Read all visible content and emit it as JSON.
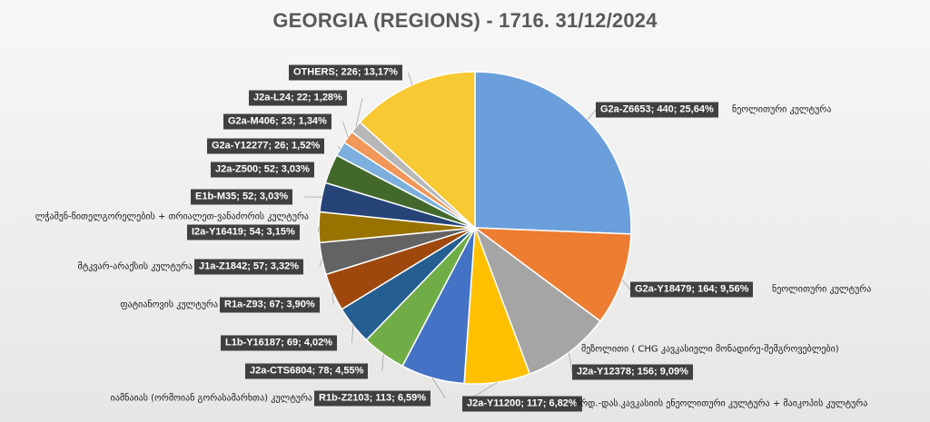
{
  "chart_data": {
    "type": "pie",
    "title": "GEORGIA (REGIONS) - 1716. 31/12/2024",
    "total": 1716,
    "slices": [
      {
        "label": "G2a-Z6653",
        "count": 440,
        "percent": "25,64%",
        "color": "#6a9fdb",
        "note": "ნეოლითური კულტურა"
      },
      {
        "label": "G2a-Y18479",
        "count": 164,
        "percent": "9,56%",
        "color": "#ed7d31",
        "note": "ნეოლითური კულტურა"
      },
      {
        "label": "J2a-Y12378",
        "count": 156,
        "percent": "9,09%",
        "color": "#a5a5a5",
        "note": "მეზოლითი ( CHG კავკასიელი მონადირე-შემგროვებლები)"
      },
      {
        "label": "J2a-Y11200",
        "count": 117,
        "percent": "6,82%",
        "color": "#ffc000",
        "note": "ჩრდ.-დას.კავკასიის ენეოლითური კულტურა + მაიკოპის კულტურა"
      },
      {
        "label": "R1b-Z2103",
        "count": 113,
        "percent": "6,59%",
        "color": "#4472c4",
        "note": "იამნაიას (ორმოიან გორასამარხთა) კულტურა"
      },
      {
        "label": "J2a-CTS6804",
        "count": 78,
        "percent": "4,55%",
        "color": "#70ad47",
        "note": ""
      },
      {
        "label": "L1b-Y16187",
        "count": 69,
        "percent": "4,02%",
        "color": "#255e91",
        "note": ""
      },
      {
        "label": "R1a-Z93",
        "count": 67,
        "percent": "3,90%",
        "color": "#9e480e",
        "note": "ფატიანოვის კულტურა"
      },
      {
        "label": "J1a-Z1842",
        "count": 57,
        "percent": "3,32%",
        "color": "#636363",
        "note": "მტკვარ-არაქსის კულტურა"
      },
      {
        "label": "I2a-Y16419",
        "count": 54,
        "percent": "3,15%",
        "color": "#997300",
        "note": ""
      },
      {
        "label": "E1b-M35",
        "count": 52,
        "percent": "3,03%",
        "color": "#264478",
        "note": "ლჭაშენ-წითელგორელების + თრიალეთ-ვანაძორის კულტურა"
      },
      {
        "label": "J2a-Z500",
        "count": 52,
        "percent": "3,03%",
        "color": "#43682b",
        "note": ""
      },
      {
        "label": "G2a-Y12277",
        "count": 26,
        "percent": "1,52%",
        "color": "#7cafdd",
        "note": ""
      },
      {
        "label": "G2a-M406",
        "count": 23,
        "percent": "1,34%",
        "color": "#f1975a",
        "note": ""
      },
      {
        "label": "J2a-L24",
        "count": 22,
        "percent": "1,28%",
        "color": "#b7b7b7",
        "note": ""
      },
      {
        "label": "OTHERS",
        "count": 226,
        "percent": "13,17%",
        "color": "#f7c932",
        "note": ""
      }
    ]
  }
}
